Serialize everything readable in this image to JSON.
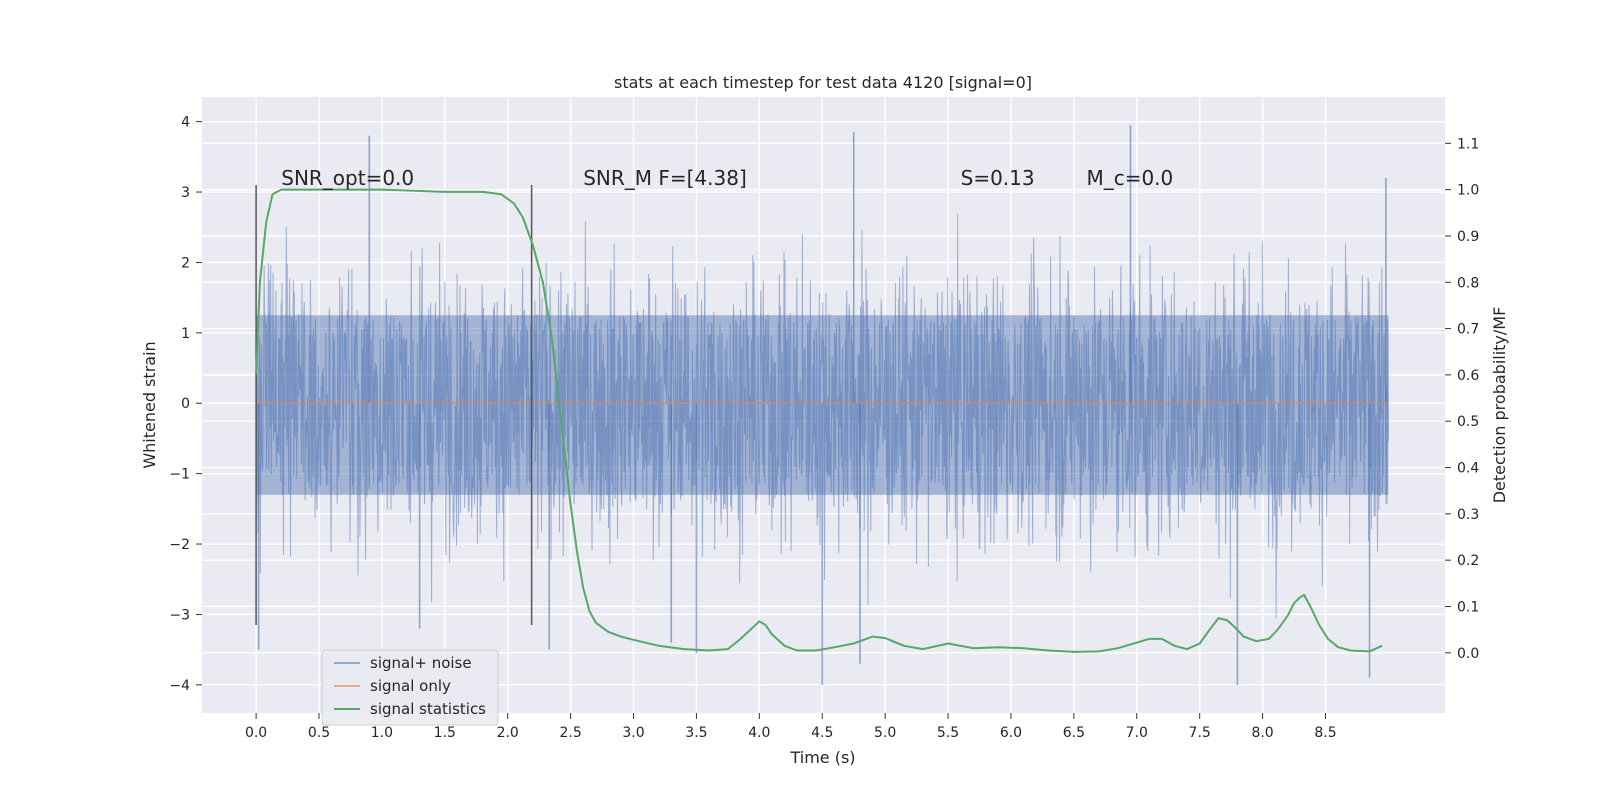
{
  "chart_data": {
    "type": "line",
    "title": "stats at each timestep for test data 4120 [signal=0]",
    "xlabel": "Time (s)",
    "ylabel": "Whitened strain",
    "ylabel_right": "Detection probability/MF",
    "xlim": [
      -0.43,
      9.45
    ],
    "ylim": [
      -4.4,
      4.35
    ],
    "ylim_right": [
      -0.13,
      1.2
    ],
    "x_ticks": [
      "0.0",
      "0.5",
      "1.0",
      "1.5",
      "2.0",
      "2.5",
      "3.0",
      "3.5",
      "4.0",
      "4.5",
      "5.0",
      "5.5",
      "6.0",
      "6.5",
      "7.0",
      "7.5",
      "8.0",
      "8.5"
    ],
    "y_ticks": [
      "4",
      "3",
      "2",
      "1",
      "0",
      "−1",
      "−2",
      "−3",
      "−4"
    ],
    "y_right_ticks": [
      "1.1",
      "1.0",
      "0.9",
      "0.8",
      "0.7",
      "0.6",
      "0.5",
      "0.4",
      "0.3",
      "0.2",
      "0.1",
      "0.0"
    ],
    "grid": true,
    "legend_position": "bottom-left",
    "annotations": [
      {
        "text": "SNR_opt=0.0",
        "x": 0.2,
        "y": 3.1
      },
      {
        "text": "SNR_M F=[4.38]",
        "x": 2.6,
        "y": 3.1
      },
      {
        "text": "S=0.13",
        "x": 5.6,
        "y": 3.1
      },
      {
        "text": "M_c=0.0",
        "x": 6.6,
        "y": 3.1
      }
    ],
    "vlines": [
      {
        "x": 0.0,
        "ymin": -3.15,
        "ymax": 3.1
      },
      {
        "x": 2.19,
        "ymin": -3.15,
        "ymax": 3.1
      }
    ],
    "series": [
      {
        "name": "signal+ noise",
        "color": "#4c72b0",
        "axis": "left",
        "x_range": [
          0.0,
          9.0
        ],
        "band_core": [
          -1.3,
          1.25
        ],
        "peak_values": [
          {
            "x": 0.02,
            "y": -3.5
          },
          {
            "x": 0.9,
            "y": 3.8
          },
          {
            "x": 1.3,
            "y": -3.2
          },
          {
            "x": 2.33,
            "y": -3.5
          },
          {
            "x": 3.3,
            "y": -3.4
          },
          {
            "x": 3.5,
            "y": -3.55
          },
          {
            "x": 4.5,
            "y": -4.0
          },
          {
            "x": 4.75,
            "y": 3.85
          },
          {
            "x": 4.8,
            "y": -3.7
          },
          {
            "x": 6.95,
            "y": 3.95
          },
          {
            "x": 7.8,
            "y": -4.0
          },
          {
            "x": 8.85,
            "y": -3.9
          },
          {
            "x": 8.98,
            "y": 3.2
          }
        ]
      },
      {
        "name": "signal only",
        "color": "#dd8452",
        "axis": "left",
        "x": [
          0.0,
          9.0
        ],
        "y": [
          0.0,
          0.0
        ]
      },
      {
        "name": "signal statistics",
        "color": "#55a868",
        "axis": "right",
        "x": [
          0.0,
          0.03,
          0.08,
          0.13,
          0.2,
          0.3,
          0.5,
          1.0,
          1.5,
          1.8,
          1.95,
          2.05,
          2.12,
          2.2,
          2.28,
          2.35,
          2.4,
          2.45,
          2.5,
          2.55,
          2.6,
          2.65,
          2.7,
          2.8,
          2.9,
          3.0,
          3.2,
          3.4,
          3.6,
          3.75,
          3.85,
          3.95,
          4.0,
          4.05,
          4.1,
          4.2,
          4.3,
          4.45,
          4.6,
          4.75,
          4.9,
          5.0,
          5.15,
          5.3,
          5.5,
          5.7,
          5.9,
          6.1,
          6.3,
          6.5,
          6.7,
          6.85,
          7.0,
          7.1,
          7.2,
          7.3,
          7.4,
          7.5,
          7.58,
          7.65,
          7.72,
          7.78,
          7.85,
          7.95,
          8.05,
          8.12,
          8.2,
          8.25,
          8.3,
          8.33,
          8.38,
          8.45,
          8.52,
          8.6,
          8.7,
          8.85,
          8.95
        ],
        "y": [
          0.6,
          0.8,
          0.93,
          0.99,
          1.0,
          1.0,
          1.0,
          1.0,
          0.995,
          0.995,
          0.99,
          0.97,
          0.94,
          0.88,
          0.8,
          0.68,
          0.56,
          0.44,
          0.32,
          0.22,
          0.14,
          0.09,
          0.065,
          0.045,
          0.035,
          0.028,
          0.015,
          0.008,
          0.005,
          0.008,
          0.03,
          0.055,
          0.068,
          0.06,
          0.04,
          0.015,
          0.005,
          0.005,
          0.012,
          0.02,
          0.035,
          0.032,
          0.015,
          0.008,
          0.02,
          0.01,
          0.012,
          0.01,
          0.005,
          0.002,
          0.003,
          0.01,
          0.022,
          0.03,
          0.03,
          0.015,
          0.008,
          0.02,
          0.05,
          0.075,
          0.07,
          0.055,
          0.035,
          0.025,
          0.03,
          0.05,
          0.08,
          0.107,
          0.12,
          0.125,
          0.1,
          0.06,
          0.03,
          0.012,
          0.005,
          0.003,
          0.015
        ]
      }
    ]
  }
}
